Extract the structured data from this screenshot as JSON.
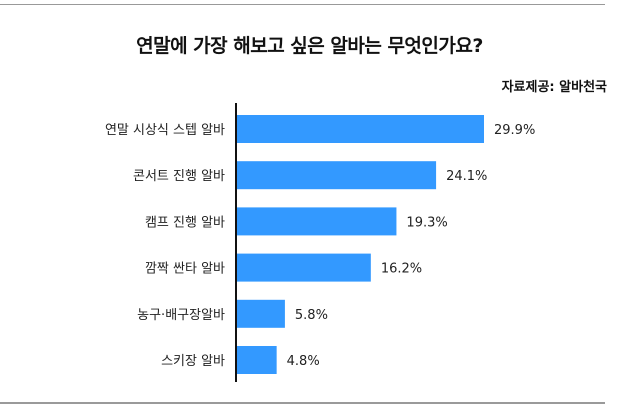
{
  "title": "연말에 가장 해보고 싶은 알바는 무엇인가요?",
  "source": "자료제공: 알바천국",
  "chart_data": {
    "type": "bar",
    "orientation": "horizontal",
    "title": "연말에 가장 해보고 싶은 알바는 무엇인가요?",
    "categories": [
      "연말 시상식 스텝 알바",
      "콘서트 진행 알바",
      "캠프 진행 알바",
      "깜짝 싼타 알바",
      "농구·배구장알바",
      "스키장 알바"
    ],
    "values": [
      29.9,
      24.1,
      19.3,
      16.2,
      5.8,
      4.8
    ],
    "value_labels": [
      "29.9%",
      "24.1%",
      "19.3%",
      "16.2%",
      "5.8%",
      "4.8%"
    ],
    "unit": "%",
    "xlim": [
      0,
      29.9
    ],
    "grid": false,
    "bar_color": "#3399ff"
  }
}
